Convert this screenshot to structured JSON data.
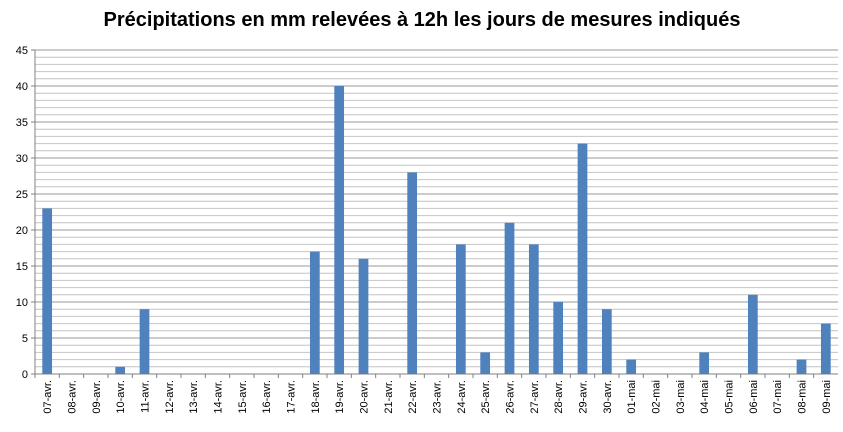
{
  "chart_data": {
    "type": "bar",
    "title": "Précipitations en mm relevées à 12h les jours de mesures indiqués",
    "categories": [
      "07-avr.",
      "08-avr.",
      "09-avr.",
      "10-avr.",
      "11-avr.",
      "12-avr.",
      "13-avr.",
      "14-avr.",
      "15-avr.",
      "16-avr.",
      "17-avr.",
      "18-avr.",
      "19-avr.",
      "20-avr.",
      "21-avr.",
      "22-avr.",
      "23-avr.",
      "24-avr.",
      "25-avr.",
      "26-avr.",
      "27-avr.",
      "28-avr.",
      "29-avr.",
      "30-avr.",
      "01-mai",
      "02-mai",
      "03-mai",
      "04-mai",
      "05-mai",
      "06-mai",
      "07-mai",
      "08-mai",
      "09-mai"
    ],
    "values": [
      23,
      0,
      0,
      1,
      9,
      0,
      0,
      0,
      0,
      0,
      0,
      17,
      40,
      16,
      0,
      28,
      0,
      18,
      3,
      21,
      18,
      10,
      32,
      9,
      2,
      0,
      0,
      3,
      0,
      11,
      0,
      2,
      7
    ],
    "color": "#4f81bd",
    "ylim": [
      0,
      45
    ],
    "yticks": [
      0,
      5,
      10,
      15,
      20,
      25,
      30,
      35,
      40,
      45
    ],
    "grid": true,
    "minor_grid": true
  }
}
